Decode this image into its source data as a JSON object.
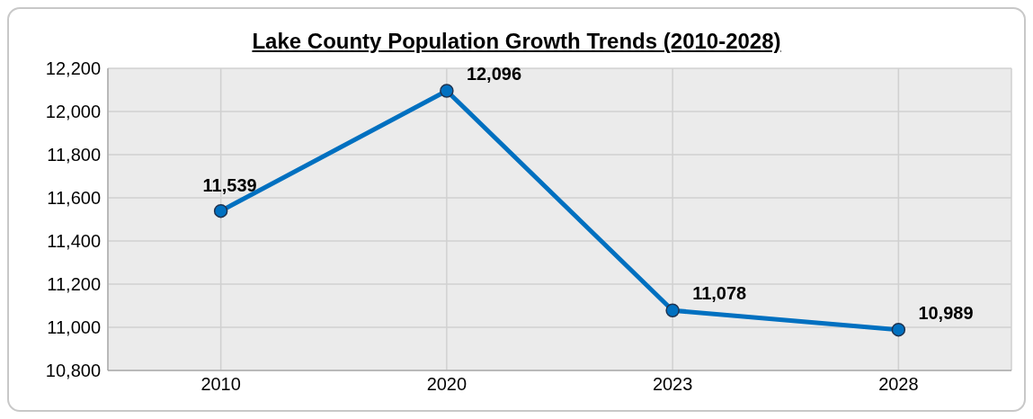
{
  "chart_data": {
    "type": "line",
    "title": "Lake County Population Growth Trends (2010-2028)",
    "categories": [
      "2010",
      "2020",
      "2023",
      "2028"
    ],
    "series": [
      {
        "color": "#0070c0",
        "values": [
          11539,
          12096,
          11078,
          10989
        ],
        "value_labels": [
          "11,539",
          "12,096",
          "11,078",
          "10,989"
        ]
      }
    ],
    "ylim": [
      10800,
      12200
    ],
    "yticks": [
      {
        "value": 10800,
        "label": "10,800"
      },
      {
        "value": 11000,
        "label": "11,000"
      },
      {
        "value": 11200,
        "label": "11,200"
      },
      {
        "value": 11400,
        "label": "11,400"
      },
      {
        "value": 11600,
        "label": "11,600"
      },
      {
        "value": 11800,
        "label": "11,800"
      },
      {
        "value": 12000,
        "label": "12,000"
      },
      {
        "value": 12200,
        "label": "12,200"
      }
    ],
    "grid": true,
    "marker": "circle"
  }
}
